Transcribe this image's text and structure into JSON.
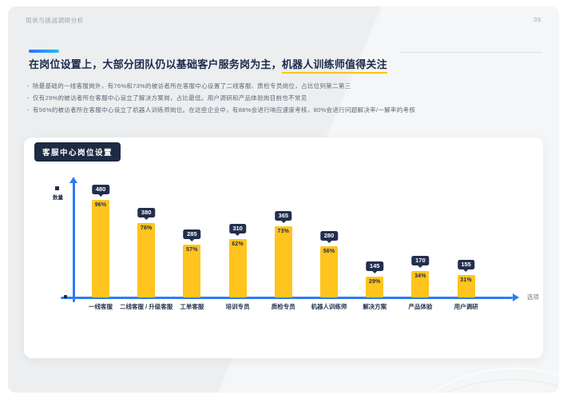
{
  "header": {
    "breadcrumb": "现状与挑战调研分析",
    "page_number": "05"
  },
  "title": {
    "main": "在岗位设置上，大部分团队仍以基础客户服务岗为主，",
    "highlight": "机器人训练师值得关注"
  },
  "bullets": [
    "除最基础的一线客服岗外，有76%和73%的被访者所在客服中心设置了二线客服、质检专员岗位，占比位列第二第三",
    "仅有29%的被访者所在客服中心设立了解决方案岗，占比最低。用户调研和产品体验岗目前也不常见",
    "有56%的被访者所在客服中心设立了机器人训练师岗位。在这些企业中，有88%会进行响应速度考核，80%会进行问题解决率/一解率的考核"
  ],
  "chart_card": {
    "badge": "客服中心岗位设置"
  },
  "chart_data": {
    "type": "bar",
    "title": "客服中心岗位设置",
    "categories": [
      "一线客服",
      "二线客服 / 升级客服",
      "工单客服",
      "培训专员",
      "质检专员",
      "机器人训练师",
      "解决方案",
      "产品体验",
      "用户调研"
    ],
    "series": [
      {
        "name": "数量",
        "values": [
          480,
          380,
          285,
          310,
          365,
          280,
          145,
          170,
          155
        ]
      },
      {
        "name": "占比",
        "values": [
          "96%",
          "76%",
          "57%",
          "62%",
          "73%",
          "56%",
          "29%",
          "34%",
          "31%"
        ]
      }
    ],
    "legend": {
      "label": "数量",
      "position": "top-left"
    },
    "xlabel": "选项",
    "ylabel": "",
    "ylim": [
      0,
      500
    ],
    "grid": false,
    "bar_color": "#FFC41D",
    "axis_color": "#2E7CF6",
    "value_badge_bg": "#222F4E"
  },
  "colors": {
    "slide_background": "#ECEEF0",
    "card_background": "#FFFFFF",
    "navy_text": "#1C2B4B",
    "muted_text": "#5F6875",
    "accent_gradient_start": "#2E6BFF",
    "accent_gradient_end": "#1FC0F2",
    "highlight_underline": "#FFC41D"
  }
}
